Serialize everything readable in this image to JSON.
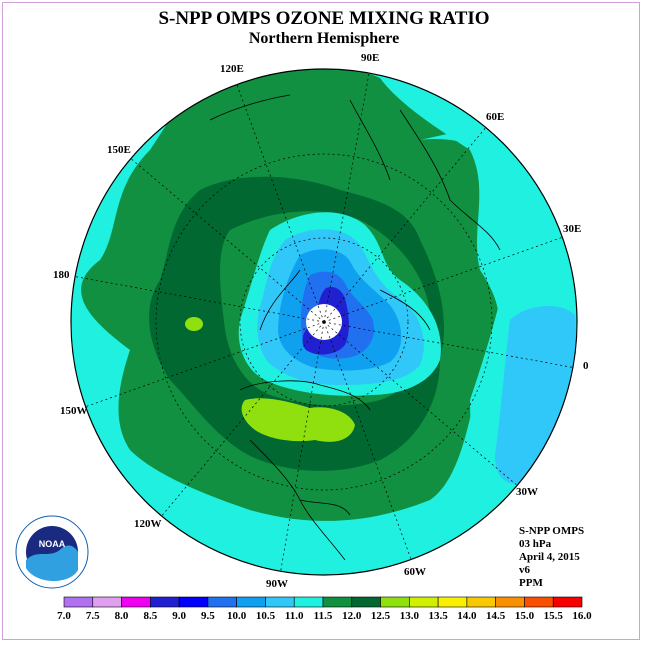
{
  "title": "S-NPP OMPS OZONE MIXING RATIO",
  "subtitle": "Northern Hemisphere",
  "longitude_labels": {
    "e90": "90E",
    "e60": "60E",
    "e30": "30E",
    "zero": "0",
    "w30": "30W",
    "w60": "60W",
    "w90": "90W",
    "w120": "120W",
    "w150": "150W",
    "d180": "180",
    "e150": "150E",
    "e120": "120E"
  },
  "info": {
    "instrument": "S-NPP OMPS",
    "level": "03 hPa",
    "date": "April 4, 2015",
    "version": "v6",
    "units": "PPM"
  },
  "logo": {
    "text": "NOAA"
  },
  "colorbar": {
    "ticks": [
      "7.0",
      "7.5",
      "8.0",
      "8.5",
      "9.0",
      "9.5",
      "10.0",
      "10.5",
      "11.0",
      "11.5",
      "12.0",
      "12.5",
      "13.0",
      "13.5",
      "14.0",
      "14.5",
      "15.0",
      "15.5",
      "16.0"
    ],
    "colors": [
      "#b070f0",
      "#e0a0f0",
      "#f000f0",
      "#2020d0",
      "#0000ff",
      "#2070f0",
      "#10a0f0",
      "#30c8f8",
      "#20f0e0",
      "#109040",
      "#006830",
      "#90e010",
      "#d0f000",
      "#f8f000",
      "#f8c800",
      "#f89000",
      "#f85000",
      "#f80000",
      "#a05030"
    ]
  },
  "legend_colors": {
    "c11_0": "#20f0e0",
    "c11_5": "#109040",
    "c12_0": "#006830",
    "c12_5": "#90e010",
    "c10_5": "#30c8f8",
    "c10_0": "#10a0f0",
    "c9_5": "#2070f0",
    "c8_5": "#2020d0"
  }
}
